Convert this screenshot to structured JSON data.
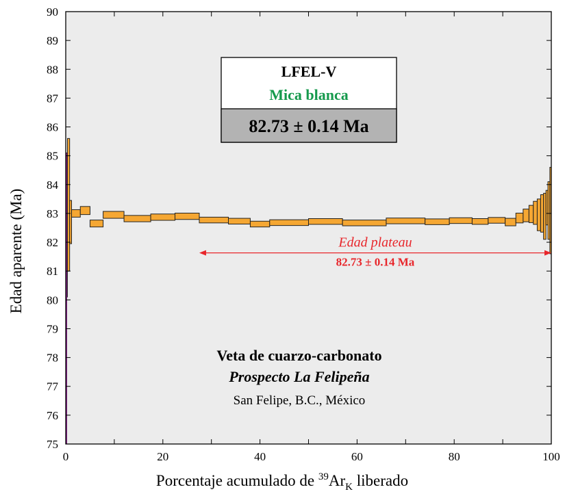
{
  "chart_data": {
    "type": "bar",
    "subtype": "age-spectrum",
    "xlabel": {
      "prefix": "Porcentaje acumulado de ",
      "sup": "39",
      "main": "Ar",
      "sub": "K",
      "suffix": " liberado"
    },
    "ylabel": "Edad aparente (Ma)",
    "xlim": [
      0,
      100
    ],
    "ylim": [
      75,
      90
    ],
    "x_ticks": [
      0,
      20,
      40,
      60,
      80,
      100
    ],
    "y_ticks": [
      75,
      76,
      77,
      78,
      79,
      80,
      81,
      82,
      83,
      84,
      85,
      86,
      87,
      88,
      89,
      90
    ],
    "grid": false,
    "bar_color": "#f5a733",
    "bar_edge_color": "#222222",
    "plot_background": "#ececec",
    "steps": [
      {
        "x0": 0.0,
        "x1": 0.35,
        "age": 82.6,
        "err": 2.5
      },
      {
        "x0": 0.35,
        "x1": 0.8,
        "age": 83.3,
        "err": 2.3
      },
      {
        "x0": 0.8,
        "x1": 1.2,
        "age": 82.7,
        "err": 0.75
      },
      {
        "x0": 1.2,
        "x1": 3.0,
        "age": 83.0,
        "err": 0.13
      },
      {
        "x0": 3.0,
        "x1": 5.0,
        "age": 83.1,
        "err": 0.14
      },
      {
        "x0": 5.0,
        "x1": 7.7,
        "age": 82.65,
        "err": 0.12
      },
      {
        "x0": 7.7,
        "x1": 12.0,
        "age": 82.95,
        "err": 0.12
      },
      {
        "x0": 12.0,
        "x1": 17.5,
        "age": 82.82,
        "err": 0.11
      },
      {
        "x0": 17.5,
        "x1": 22.5,
        "age": 82.87,
        "err": 0.11
      },
      {
        "x0": 22.5,
        "x1": 27.5,
        "age": 82.9,
        "err": 0.11
      },
      {
        "x0": 27.5,
        "x1": 33.5,
        "age": 82.77,
        "err": 0.1
      },
      {
        "x0": 33.5,
        "x1": 38.0,
        "age": 82.73,
        "err": 0.1
      },
      {
        "x0": 38.0,
        "x1": 42.0,
        "age": 82.63,
        "err": 0.1
      },
      {
        "x0": 42.0,
        "x1": 50.0,
        "age": 82.68,
        "err": 0.1
      },
      {
        "x0": 50.0,
        "x1": 57.0,
        "age": 82.72,
        "err": 0.1
      },
      {
        "x0": 57.0,
        "x1": 66.0,
        "age": 82.67,
        "err": 0.1
      },
      {
        "x0": 66.0,
        "x1": 74.0,
        "age": 82.74,
        "err": 0.1
      },
      {
        "x0": 74.0,
        "x1": 79.0,
        "age": 82.71,
        "err": 0.1
      },
      {
        "x0": 79.0,
        "x1": 83.7,
        "age": 82.75,
        "err": 0.1
      },
      {
        "x0": 83.7,
        "x1": 87.0,
        "age": 82.72,
        "err": 0.1
      },
      {
        "x0": 87.0,
        "x1": 90.5,
        "age": 82.76,
        "err": 0.1
      },
      {
        "x0": 90.5,
        "x1": 92.7,
        "age": 82.7,
        "err": 0.13
      },
      {
        "x0": 92.7,
        "x1": 94.2,
        "age": 82.84,
        "err": 0.17
      },
      {
        "x0": 94.2,
        "x1": 95.4,
        "age": 82.93,
        "err": 0.22
      },
      {
        "x0": 95.4,
        "x1": 96.3,
        "age": 82.98,
        "err": 0.3
      },
      {
        "x0": 96.3,
        "x1": 97.1,
        "age": 83.02,
        "err": 0.4
      },
      {
        "x0": 97.1,
        "x1": 97.8,
        "age": 82.95,
        "err": 0.55
      },
      {
        "x0": 97.8,
        "x1": 98.4,
        "age": 83.0,
        "err": 0.65
      },
      {
        "x0": 98.4,
        "x1": 98.9,
        "age": 82.9,
        "err": 0.8
      },
      {
        "x0": 98.9,
        "x1": 99.3,
        "age": 83.2,
        "err": 0.6
      },
      {
        "x0": 99.3,
        "x1": 99.7,
        "age": 83.1,
        "err": 1.0
      },
      {
        "x0": 99.7,
        "x1": 100.0,
        "age": 83.1,
        "err": 1.5
      }
    ],
    "plateau": {
      "x_start": 27.5,
      "x_end": 100,
      "y": 81.63,
      "label": "Edad plateau",
      "value_text": "82.73 ± 0.14 Ma",
      "color": "#e8262b"
    },
    "info_box": {
      "sample": "LFEL-V",
      "mineral": "Mica blanca",
      "mineral_color": "#169a4d",
      "age_text": "82.73 ± 0.14 Ma",
      "age_bg": "#b3b3b3"
    },
    "location": {
      "line1": "Veta de cuarzo-carbonato",
      "line2": "Prospecto La Felipeña",
      "line3": "San Felipe, B.C., México"
    },
    "left_axis_accent_color": "#7a1f7f"
  }
}
